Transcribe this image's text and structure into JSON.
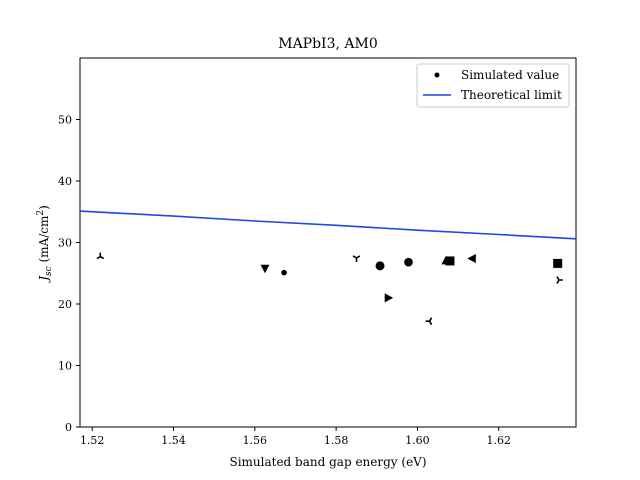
{
  "chart_data": {
    "type": "scatter",
    "title": "MAPbI3, AM0",
    "xlabel": "Simulated band gap energy (eV)",
    "ylabel": "J_sc (mA/cm^2)",
    "xlim": [
      1.517,
      1.639
    ],
    "ylim": [
      0,
      60
    ],
    "xticks": [
      1.52,
      1.54,
      1.56,
      1.58,
      1.6,
      1.62
    ],
    "xtick_labels": [
      "1.52",
      "1.54",
      "1.56",
      "1.58",
      "1.60",
      "1.62"
    ],
    "yticks": [
      0,
      10,
      20,
      30,
      40,
      50
    ],
    "ytick_labels": [
      "0",
      "10",
      "20",
      "30",
      "40",
      "50"
    ],
    "grid": false,
    "legend_position": "top-right",
    "series": [
      {
        "name": "Simulated value",
        "color": "#000000",
        "points": [
          {
            "x": 1.522,
            "y": 27.7,
            "marker": "tri_down"
          },
          {
            "x": 1.5625,
            "y": 25.8,
            "marker": "triangle_down"
          },
          {
            "x": 1.5672,
            "y": 25.1,
            "marker": "point"
          },
          {
            "x": 1.585,
            "y": 27.5,
            "marker": "tri_up"
          },
          {
            "x": 1.5908,
            "y": 26.2,
            "marker": "circle"
          },
          {
            "x": 1.5928,
            "y": 21.0,
            "marker": "triangle_right"
          },
          {
            "x": 1.5978,
            "y": 26.8,
            "marker": "octagon"
          },
          {
            "x": 1.603,
            "y": 17.2,
            "marker": "tri_left"
          },
          {
            "x": 1.607,
            "y": 27.0,
            "marker": "triangle_up"
          },
          {
            "x": 1.608,
            "y": 27.0,
            "marker": "square"
          },
          {
            "x": 1.6135,
            "y": 27.4,
            "marker": "triangle_left"
          },
          {
            "x": 1.6345,
            "y": 26.6,
            "marker": "square"
          },
          {
            "x": 1.6348,
            "y": 23.9,
            "marker": "tri_right"
          }
        ]
      },
      {
        "name": "Theoretical limit",
        "color": "#1f49e0",
        "line": [
          {
            "x": 1.517,
            "y": 35.1
          },
          {
            "x": 1.54,
            "y": 34.3
          },
          {
            "x": 1.56,
            "y": 33.5
          },
          {
            "x": 1.58,
            "y": 32.8
          },
          {
            "x": 1.6,
            "y": 32.0
          },
          {
            "x": 1.62,
            "y": 31.3
          },
          {
            "x": 1.639,
            "y": 30.6
          }
        ]
      }
    ]
  }
}
